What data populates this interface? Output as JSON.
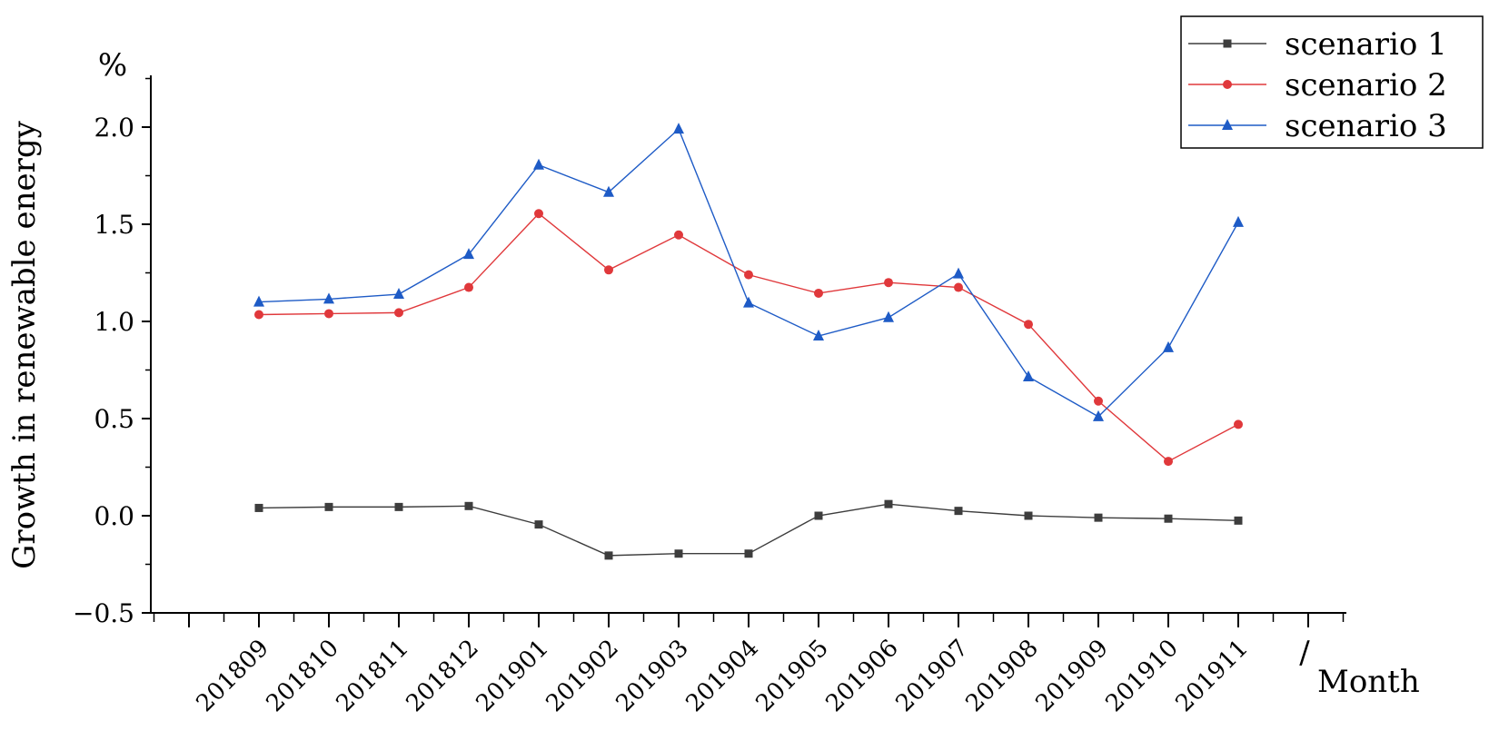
{
  "chart_data": {
    "type": "line",
    "title": "",
    "xlabel": "Month",
    "xlabel_prefix": "/",
    "ylabel": "Growth in renewable energy",
    "y_unit": "%",
    "categories": [
      "201809",
      "201810",
      "201811",
      "201812",
      "201901",
      "201902",
      "201903",
      "201904",
      "201905",
      "201906",
      "201907",
      "201908",
      "201909",
      "201910",
      "201911"
    ],
    "ylim": [
      -0.5,
      2.0
    ],
    "y_ticks": [
      "-0.5",
      "0.0",
      "0.5",
      "1.0",
      "1.5",
      "2.0"
    ],
    "grid": false,
    "legend_position": "top-right",
    "series": [
      {
        "name": "scenario 1",
        "color": "#3d3d3d",
        "marker": "square",
        "values": [
          0.04,
          0.045,
          0.045,
          0.05,
          -0.045,
          -0.205,
          -0.195,
          -0.195,
          0.0,
          0.06,
          0.025,
          0.0,
          -0.01,
          -0.015,
          -0.025
        ]
      },
      {
        "name": "scenario 2",
        "color": "#e0383b",
        "marker": "circle",
        "values": [
          1.035,
          1.04,
          1.045,
          1.175,
          1.555,
          1.265,
          1.445,
          1.24,
          1.145,
          1.2,
          1.175,
          0.985,
          0.59,
          0.28,
          0.47
        ]
      },
      {
        "name": "scenario 3",
        "color": "#1e5bc6",
        "marker": "triangle",
        "values": [
          1.1,
          1.115,
          1.14,
          1.345,
          1.805,
          1.665,
          1.99,
          1.095,
          0.925,
          1.02,
          1.245,
          0.715,
          0.51,
          0.865,
          1.51
        ]
      }
    ]
  }
}
